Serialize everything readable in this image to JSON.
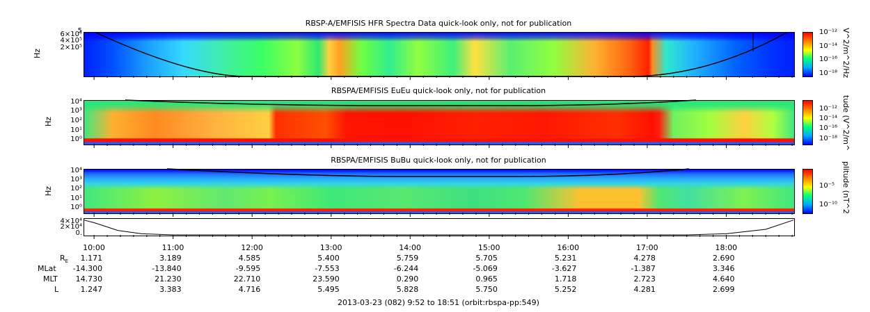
{
  "chart_data": [
    {
      "type": "heatmap",
      "title": "RBSP-A/EMFISIS  HFR Spectra Data quick-look only, not for publication",
      "ylabel": "Hz",
      "ytick_labels": [
        "5",
        "6×10⁵",
        "4×10⁵",
        "2×10⁵"
      ],
      "colorbar_label": "V^2/m^2/Hz",
      "colorbar_ticks": [
        "10⁻¹²",
        "10⁻¹⁴",
        "10⁻¹⁶",
        "10⁻¹⁸"
      ],
      "colors": [
        "#0000ff",
        "#00aaff",
        "#00ff80",
        "#ffff00",
        "#ff8000",
        "#ff0000"
      ]
    },
    {
      "type": "heatmap",
      "title": "RBSPA/EMFISIS  EuEu quick-look only, not for publication",
      "ylabel": "Hz",
      "ytick_labels": [
        "10⁴",
        "10³",
        "10²",
        "10¹",
        "10⁰"
      ],
      "colorbar_label": "tude (V^2/m^",
      "colorbar_ticks": [
        "10⁻¹²",
        "10⁻¹⁴",
        "10⁻¹⁶",
        "10⁻¹⁸"
      ]
    },
    {
      "type": "heatmap",
      "title": "RBSPA/EMFISIS  BuBu quick-look only, not for publication",
      "ylabel": "Hz",
      "ytick_labels": [
        "10⁴",
        "10³",
        "10²",
        "10¹",
        "10⁰"
      ],
      "colorbar_label": "plitude (nT^2",
      "colorbar_ticks": [
        "10⁻⁵",
        "10⁻¹⁰"
      ]
    },
    {
      "type": "line",
      "ytick_labels": [
        "4×10⁴",
        "2×10⁴",
        "0."
      ],
      "x_hours": [
        9.87,
        10.0,
        10.3,
        10.6,
        11.0,
        17.5,
        18.0,
        18.5,
        18.85
      ],
      "y": [
        4.0,
        3.3,
        1.2,
        0.3,
        0.0,
        0.0,
        0.3,
        1.5,
        4.0
      ],
      "ylim": [
        0,
        4.5
      ]
    }
  ],
  "xaxis": {
    "start_hour": 9.8667,
    "end_hour": 18.85,
    "ticks": [
      "10:00",
      "11:00",
      "12:00",
      "13:00",
      "14:00",
      "15:00",
      "16:00",
      "17:00",
      "18:00"
    ],
    "tick_hours": [
      10,
      11,
      12,
      13,
      14,
      15,
      16,
      17,
      18
    ]
  },
  "ephemeris": [
    {
      "label": "R",
      "sub": "E",
      "values": [
        "1.171",
        "3.189",
        "4.585",
        "5.400",
        "5.759",
        "5.705",
        "5.231",
        "4.278",
        "2.690"
      ]
    },
    {
      "label": "MLat",
      "values": [
        "-14.300",
        "-13.840",
        "-9.595",
        "-7.553",
        "-6.244",
        "-5.069",
        "-3.627",
        "-1.387",
        "3.346"
      ]
    },
    {
      "label": "MLT",
      "values": [
        "14.730",
        "21.230",
        "22.710",
        "23.590",
        "0.290",
        "0.965",
        "1.718",
        "2.723",
        "4.640"
      ]
    },
    {
      "label": "L",
      "values": [
        "1.247",
        "3.383",
        "4.716",
        "5.495",
        "5.828",
        "5.750",
        "5.252",
        "4.281",
        "2.699"
      ]
    }
  ],
  "footer": "2013-03-23 (082) 9:52 to 18:51 (orbit:rbspa-pp:549)"
}
